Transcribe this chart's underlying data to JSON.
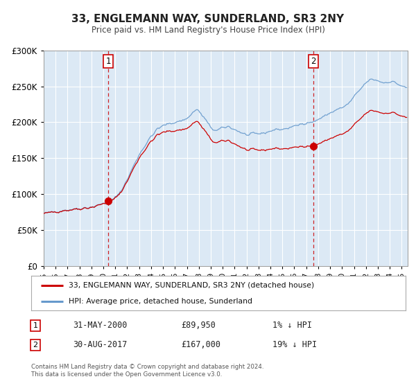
{
  "title": "33, ENGLEMANN WAY, SUNDERLAND, SR3 2NY",
  "subtitle": "Price paid vs. HM Land Registry's House Price Index (HPI)",
  "legend_property": "33, ENGLEMANN WAY, SUNDERLAND, SR3 2NY (detached house)",
  "legend_hpi": "HPI: Average price, detached house, Sunderland",
  "sale1_date": "31-MAY-2000",
  "sale1_price": 89950,
  "sale1_pct": "1%",
  "sale2_date": "30-AUG-2017",
  "sale2_price": 167000,
  "sale2_pct": "19%",
  "footnote1": "Contains HM Land Registry data © Crown copyright and database right 2024.",
  "footnote2": "This data is licensed under the Open Government Licence v3.0.",
  "background_color": "#dce9f5",
  "line_property_color": "#cc0000",
  "line_hpi_color": "#6699cc",
  "ylim": [
    0,
    300000
  ],
  "yticks": [
    0,
    50000,
    100000,
    150000,
    200000,
    250000,
    300000
  ],
  "xlim_start": 1995.0,
  "xlim_end": 2025.5,
  "sale1_t": 2000.4167,
  "sale2_t": 2017.5833
}
